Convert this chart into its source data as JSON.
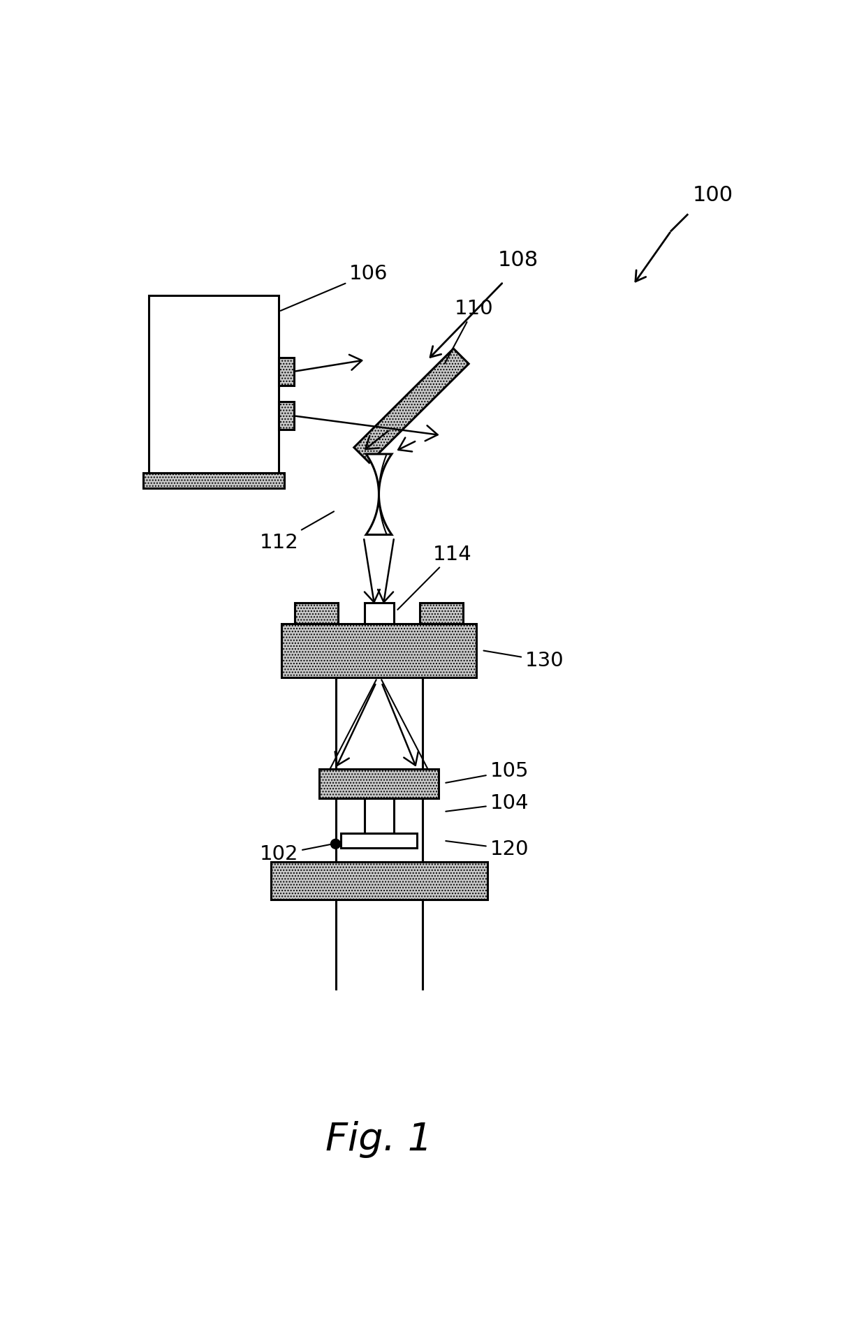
{
  "background_color": "#ffffff",
  "fig_label": "Fig. 1",
  "label_100": "100",
  "label_106": "106",
  "label_108": "108",
  "label_110": "110",
  "label_112": "112",
  "label_114": "114",
  "label_130": "130",
  "label_105": "105",
  "label_104": "104",
  "label_120": "120",
  "label_102": "102",
  "line_color": "#000000",
  "hatch_dot": "....",
  "face_gray": "#c8c8c8",
  "face_white": "#ffffff"
}
